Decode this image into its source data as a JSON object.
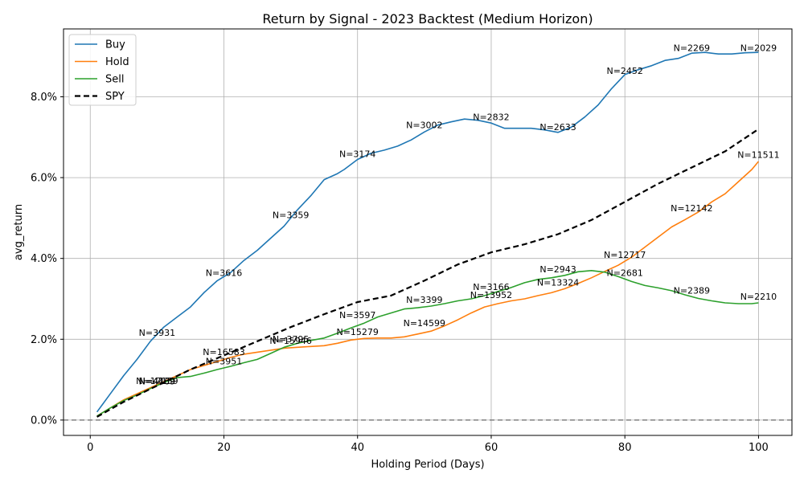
{
  "chart_data": {
    "type": "line",
    "title": "Return by Signal - 2023 Backtest (Medium Horizon)",
    "xlabel": "Holding Period (Days)",
    "ylabel": "avg_return",
    "xlim": [
      -4,
      105
    ],
    "ylim": [
      -0.0038,
      0.0968
    ],
    "xticks": [
      0,
      20,
      40,
      60,
      80,
      100
    ],
    "xtick_labels": [
      "0",
      "20",
      "40",
      "60",
      "80",
      "100"
    ],
    "yticks": [
      0.0,
      0.02,
      0.04,
      0.06,
      0.08
    ],
    "ytick_labels": [
      "0.0%",
      "2.0%",
      "4.0%",
      "6.0%",
      "8.0%"
    ],
    "grid": true,
    "legend_position": "upper left",
    "baseline": 0.0,
    "series": [
      {
        "name": "Buy",
        "color": "#1f77b4",
        "style": "solid",
        "x": [
          1,
          3,
          5,
          7,
          9,
          11,
          13,
          15,
          17,
          19,
          21,
          23,
          25,
          27,
          29,
          31,
          33,
          35,
          37,
          38,
          40,
          42,
          44,
          46,
          48,
          50,
          52,
          54,
          56,
          58,
          60,
          62,
          64,
          66,
          68,
          70,
          72,
          74,
          76,
          78,
          80,
          82,
          84,
          86,
          88,
          90,
          92,
          94,
          96,
          98,
          100
        ],
        "y": [
          0.002,
          0.0065,
          0.011,
          0.015,
          0.0195,
          0.023,
          0.0255,
          0.028,
          0.0315,
          0.0345,
          0.0365,
          0.0395,
          0.042,
          0.045,
          0.048,
          0.052,
          0.0555,
          0.0595,
          0.061,
          0.062,
          0.0645,
          0.066,
          0.0668,
          0.0678,
          0.0693,
          0.0713,
          0.073,
          0.0738,
          0.0745,
          0.0742,
          0.0735,
          0.0722,
          0.0722,
          0.0722,
          0.0718,
          0.0712,
          0.0725,
          0.075,
          0.078,
          0.082,
          0.0855,
          0.0867,
          0.0877,
          0.089,
          0.0895,
          0.0908,
          0.091,
          0.0906,
          0.0906,
          0.0909,
          0.091
        ]
      },
      {
        "name": "Hold",
        "color": "#ff7f0e",
        "style": "solid",
        "x": [
          1,
          3,
          5,
          7,
          9,
          11,
          13,
          15,
          17,
          19,
          21,
          23,
          25,
          27,
          29,
          31,
          33,
          35,
          37,
          39,
          41,
          43,
          45,
          47,
          49,
          51,
          53,
          55,
          57,
          59,
          61,
          63,
          65,
          67,
          69,
          71,
          73,
          75,
          77,
          79,
          81,
          83,
          85,
          87,
          89,
          91,
          93,
          95,
          97,
          99,
          100
        ],
        "y": [
          0.001,
          0.003,
          0.005,
          0.0065,
          0.008,
          0.0095,
          0.011,
          0.0125,
          0.0135,
          0.0145,
          0.0155,
          0.0163,
          0.0168,
          0.0173,
          0.0178,
          0.018,
          0.0182,
          0.0184,
          0.019,
          0.0198,
          0.0202,
          0.0203,
          0.0203,
          0.0206,
          0.0213,
          0.022,
          0.0233,
          0.0248,
          0.0265,
          0.028,
          0.0288,
          0.0295,
          0.03,
          0.0308,
          0.0315,
          0.0325,
          0.0338,
          0.0352,
          0.0368,
          0.0383,
          0.0403,
          0.0428,
          0.0453,
          0.0478,
          0.0496,
          0.0515,
          0.054,
          0.056,
          0.059,
          0.062,
          0.064
        ]
      },
      {
        "name": "Sell",
        "color": "#2ca02c",
        "style": "solid",
        "x": [
          1,
          3,
          5,
          7,
          9,
          11,
          13,
          15,
          17,
          19,
          21,
          23,
          25,
          27,
          29,
          31,
          33,
          35,
          37,
          39,
          41,
          43,
          45,
          47,
          49,
          51,
          53,
          55,
          57,
          59,
          61,
          63,
          65,
          67,
          69,
          71,
          73,
          75,
          77,
          79,
          81,
          83,
          85,
          87,
          89,
          91,
          93,
          95,
          97,
          99,
          100
        ],
        "y": [
          0.001,
          0.003,
          0.0048,
          0.0062,
          0.0078,
          0.0093,
          0.0105,
          0.0108,
          0.0116,
          0.0125,
          0.0133,
          0.0142,
          0.015,
          0.0165,
          0.018,
          0.019,
          0.0197,
          0.0203,
          0.0215,
          0.0228,
          0.024,
          0.0255,
          0.0265,
          0.0275,
          0.0278,
          0.0282,
          0.0288,
          0.0295,
          0.03,
          0.0308,
          0.0318,
          0.0328,
          0.034,
          0.0348,
          0.0352,
          0.0358,
          0.0367,
          0.037,
          0.0366,
          0.0355,
          0.0343,
          0.0333,
          0.0327,
          0.032,
          0.031,
          0.0301,
          0.0295,
          0.029,
          0.0288,
          0.0288,
          0.029
        ]
      },
      {
        "name": "SPY",
        "color": "#000000",
        "style": "dashed",
        "x": [
          1,
          5,
          10,
          15,
          20,
          25,
          30,
          35,
          40,
          45,
          50,
          55,
          60,
          65,
          70,
          75,
          80,
          85,
          90,
          95,
          100
        ],
        "y": [
          0.0008,
          0.0045,
          0.0085,
          0.0125,
          0.016,
          0.0195,
          0.023,
          0.0262,
          0.0292,
          0.0308,
          0.0345,
          0.0385,
          0.0415,
          0.0435,
          0.046,
          0.0495,
          0.054,
          0.0585,
          0.0625,
          0.0665,
          0.072
        ]
      }
    ],
    "annotations": [
      {
        "text": "N=2029",
        "x": 100,
        "y": 0.0913
      },
      {
        "text": "N=2269",
        "x": 90,
        "y": 0.0913
      },
      {
        "text": "N=2452",
        "x": 80,
        "y": 0.0857
      },
      {
        "text": "N=2633",
        "x": 70,
        "y": 0.0717
      },
      {
        "text": "N=2832",
        "x": 60,
        "y": 0.0742
      },
      {
        "text": "N=3002",
        "x": 50,
        "y": 0.0722
      },
      {
        "text": "N=3174",
        "x": 40,
        "y": 0.0651
      },
      {
        "text": "N=3359",
        "x": 30,
        "y": 0.05
      },
      {
        "text": "N=3616",
        "x": 20,
        "y": 0.0357
      },
      {
        "text": "N=3931",
        "x": 10,
        "y": 0.0209
      },
      {
        "text": "N=4469",
        "x": 10,
        "y": 0.0088
      },
      {
        "text": "N=11511",
        "x": 100,
        "y": 0.0649
      },
      {
        "text": "N=12142",
        "x": 90,
        "y": 0.0517
      },
      {
        "text": "N=12717",
        "x": 80,
        "y": 0.0401
      },
      {
        "text": "N=13324",
        "x": 70,
        "y": 0.0333
      },
      {
        "text": "N=13952",
        "x": 60,
        "y": 0.0302
      },
      {
        "text": "N=14599",
        "x": 50,
        "y": 0.0232
      },
      {
        "text": "N=15279",
        "x": 40,
        "y": 0.0211
      },
      {
        "text": "N=15946",
        "x": 30,
        "y": 0.0189
      },
      {
        "text": "N=16583",
        "x": 20,
        "y": 0.0161
      },
      {
        "text": "N=17159",
        "x": 10,
        "y": 0.0089
      },
      {
        "text": "N=2210",
        "x": 100,
        "y": 0.0298
      },
      {
        "text": "N=2389",
        "x": 90,
        "y": 0.0313
      },
      {
        "text": "N=2681",
        "x": 80,
        "y": 0.0357
      },
      {
        "text": "N=2943",
        "x": 70,
        "y": 0.0366
      },
      {
        "text": "N=3166",
        "x": 60,
        "y": 0.0322
      },
      {
        "text": "N=3399",
        "x": 50,
        "y": 0.029
      },
      {
        "text": "N=3597",
        "x": 40,
        "y": 0.0252
      },
      {
        "text": "N=3795",
        "x": 30,
        "y": 0.0193
      },
      {
        "text": "N=3951",
        "x": 20,
        "y": 0.0138
      },
      {
        "text": "N=4139",
        "x": 10,
        "y": 0.0089
      }
    ]
  }
}
